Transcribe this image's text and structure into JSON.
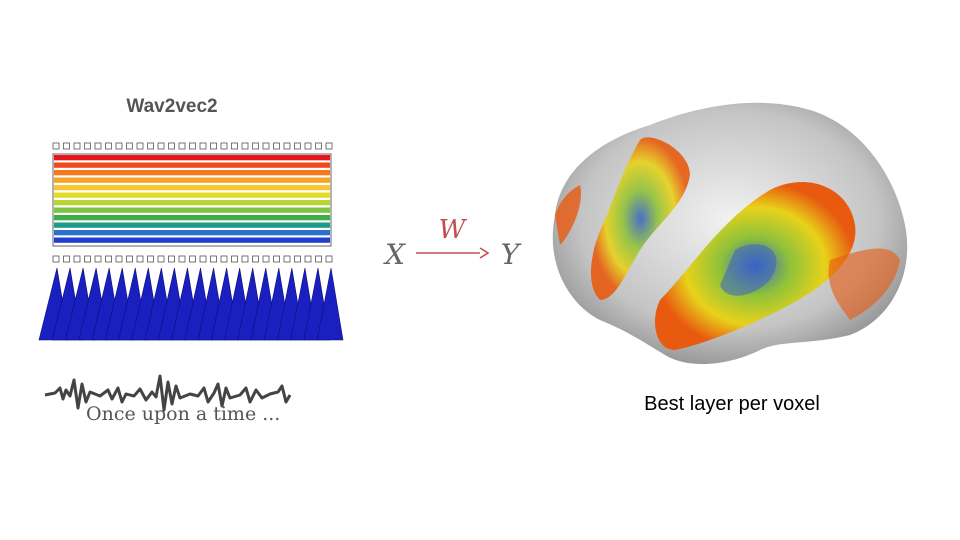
{
  "model": {
    "title": "Wav2vec2",
    "transcript": "Once upon a time ..."
  },
  "mapping": {
    "input": "X",
    "weights": "W",
    "output": "Y"
  },
  "brain": {
    "caption": "Best layer per voxel"
  }
}
